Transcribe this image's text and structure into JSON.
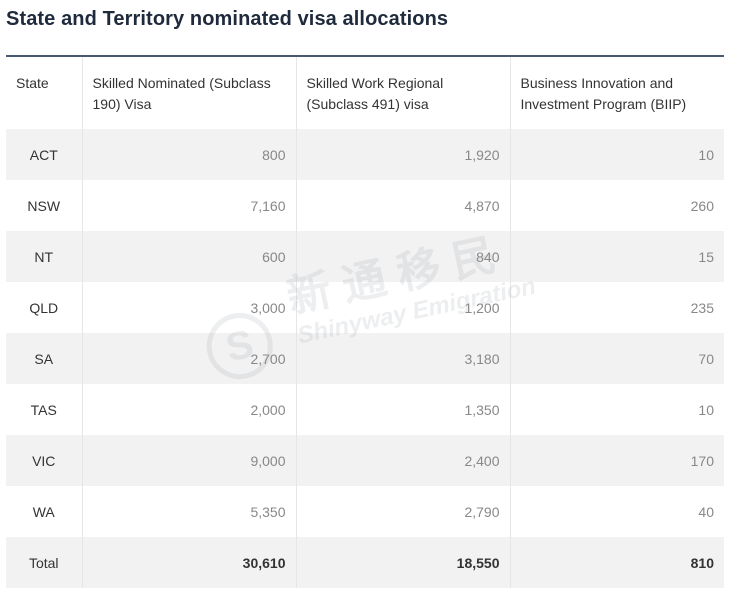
{
  "title": "State and Territory nominated visa allocations",
  "table": {
    "headers": [
      "State",
      "Skilled Nominated (Subclass 190) Visa",
      "Skilled Work Regional (Subclass 491) visa",
      "Business Innovation and Investment Program (BIIP)"
    ],
    "rows": [
      [
        "ACT",
        "800",
        "1,920",
        "10"
      ],
      [
        "NSW",
        "7,160",
        "4,870",
        "260"
      ],
      [
        "NT",
        "600",
        "840",
        "15"
      ],
      [
        "QLD",
        "3,000",
        "1,200",
        "235"
      ],
      [
        "SA",
        "2,700",
        "3,180",
        "70"
      ],
      [
        "TAS",
        "2,000",
        "1,350",
        "10"
      ],
      [
        "VIC",
        "9,000",
        "2,400",
        "170"
      ],
      [
        "WA",
        "5,350",
        "2,790",
        "40"
      ]
    ],
    "total": [
      "Total",
      "30,610",
      "18,550",
      "810"
    ]
  },
  "watermark": {
    "logo": "S",
    "chinese": "新通移民",
    "english": "Shinyway Emigration"
  }
}
